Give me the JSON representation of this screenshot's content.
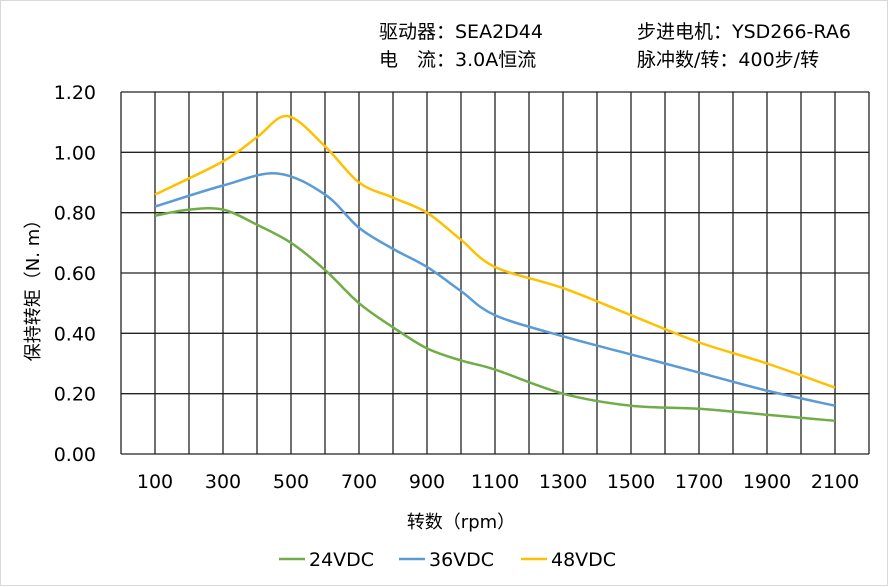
{
  "info": {
    "driver": "驱动器：SEA2D44",
    "current": "电　流：3.0A恒流",
    "motor": "步进电机：YSD266-RA6",
    "pulses": "脉冲数/转：400步/转"
  },
  "chart_data": {
    "type": "line",
    "title": "",
    "xlabel": "转数（rpm）",
    "ylabel": "保持转矩（N. m）",
    "xlim": [
      0,
      2200
    ],
    "ylim": [
      0,
      1.2
    ],
    "grid": true,
    "legend": "bottom",
    "xticks": [
      100,
      300,
      500,
      700,
      900,
      1100,
      1300,
      1500,
      1700,
      1900,
      2100
    ],
    "yticks": [
      "0.00",
      "0.20",
      "0.40",
      "0.60",
      "0.80",
      "1.00",
      "1.20"
    ],
    "series": [
      {
        "name": "24VDC",
        "color": "#70ad47",
        "x": [
          100,
          200,
          300,
          400,
          500,
          600,
          700,
          800,
          900,
          1000,
          1100,
          1300,
          1500,
          1700,
          1900,
          2100
        ],
        "y": [
          0.79,
          0.81,
          0.81,
          0.76,
          0.7,
          0.61,
          0.5,
          0.42,
          0.35,
          0.31,
          0.28,
          0.2,
          0.16,
          0.15,
          0.13,
          0.11
        ]
      },
      {
        "name": "36VDC",
        "color": "#5b9bd5",
        "x": [
          100,
          300,
          460,
          600,
          700,
          800,
          900,
          1000,
          1100,
          1300,
          1500,
          1700,
          1900,
          2100
        ],
        "y": [
          0.82,
          0.89,
          0.93,
          0.86,
          0.75,
          0.68,
          0.62,
          0.54,
          0.46,
          0.39,
          0.33,
          0.27,
          0.21,
          0.16
        ]
      },
      {
        "name": "48VDC",
        "color": "#ffc000",
        "x": [
          100,
          300,
          400,
          490,
          600,
          700,
          800,
          900,
          1000,
          1100,
          1300,
          1500,
          1700,
          1900,
          2100
        ],
        "y": [
          0.86,
          0.97,
          1.05,
          1.12,
          1.02,
          0.9,
          0.85,
          0.8,
          0.71,
          0.62,
          0.55,
          0.46,
          0.37,
          0.3,
          0.22
        ]
      }
    ]
  }
}
